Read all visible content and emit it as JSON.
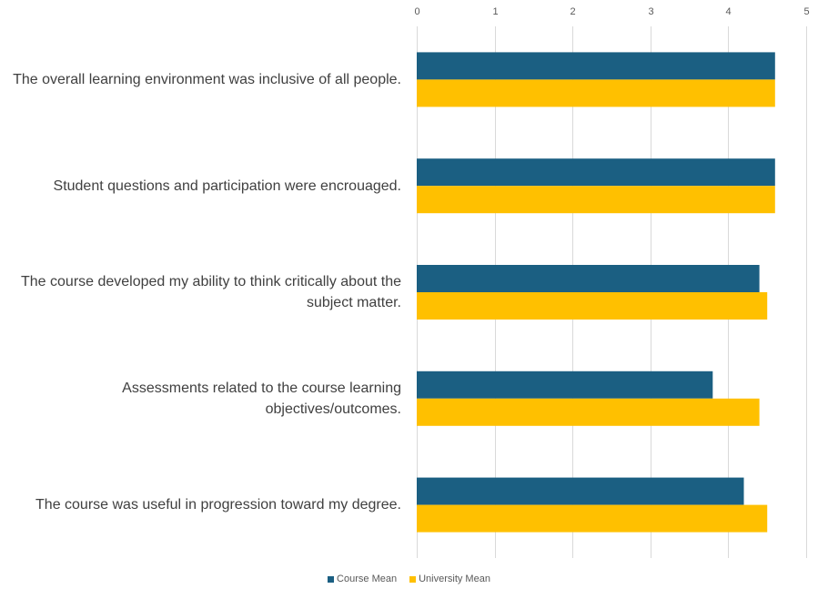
{
  "chart_data": {
    "type": "bar",
    "orientation": "horizontal",
    "categories": [
      "The overall learning environment was inclusive of all people.",
      "Student questions and participation were encrouaged.",
      "The course developed my ability to think critically about the subject matter.",
      "Assessments related to the course learning objectives/outcomes.",
      "The course was useful in progression toward my degree."
    ],
    "series": [
      {
        "name": "Course Mean",
        "color": "#1b5f82",
        "values": [
          4.6,
          4.6,
          4.4,
          3.8,
          4.2
        ]
      },
      {
        "name": "University Mean",
        "color": "#ffc000",
        "values": [
          4.6,
          4.6,
          4.5,
          4.4,
          4.5
        ]
      }
    ],
    "xlim": [
      0,
      5
    ],
    "xticks": [
      "0",
      "1",
      "2",
      "3",
      "4",
      "5"
    ],
    "grid": true,
    "xaxis_position": "top",
    "legend_position": "bottom"
  }
}
